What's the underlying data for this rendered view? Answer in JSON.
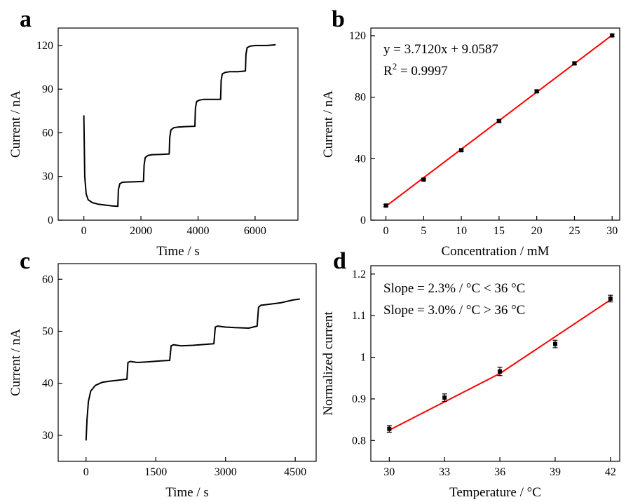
{
  "chart_data": [
    {
      "panel": "a",
      "type": "line",
      "xlabel": "Time / s",
      "ylabel": "Current / nA",
      "xlim": [
        -900,
        7500
      ],
      "ylim": [
        0,
        132
      ],
      "xticks": [
        0,
        2000,
        4000,
        6000
      ],
      "yticks": [
        0,
        30,
        60,
        90,
        120
      ],
      "x": [
        0,
        30,
        80,
        150,
        300,
        500,
        800,
        1000,
        1190,
        1210,
        1260,
        1350,
        1500,
        1800,
        2090,
        2110,
        2150,
        2250,
        2400,
        2700,
        2990,
        3010,
        3050,
        3150,
        3300,
        3600,
        3890,
        3910,
        3950,
        4050,
        4200,
        4500,
        4790,
        4810,
        4850,
        4950,
        5100,
        5400,
        5660,
        5680,
        5720,
        5820,
        6000,
        6400,
        6720
      ],
      "y": [
        72,
        30,
        18,
        14,
        12,
        11,
        10.2,
        9.8,
        9.5,
        21,
        25,
        26,
        26.2,
        26.4,
        26.6,
        38,
        43,
        44.5,
        45,
        45.2,
        45.5,
        57,
        62,
        63.5,
        64,
        64.3,
        64.5,
        77,
        81.5,
        82.5,
        83,
        83,
        83,
        96,
        100.5,
        101.5,
        102,
        102,
        102.5,
        114,
        118.5,
        119.5,
        120,
        120,
        120.5
      ]
    },
    {
      "panel": "b",
      "type": "scatter",
      "xlabel": "Concentration / mM",
      "ylabel": "Current / nA",
      "xlim": [
        -2,
        31
      ],
      "ylim": [
        0,
        125
      ],
      "xticks": [
        0,
        5,
        10,
        15,
        20,
        25,
        30
      ],
      "yticks": [
        0,
        40,
        80,
        120
      ],
      "x": [
        0,
        5,
        10,
        15,
        20,
        25,
        30
      ],
      "y": [
        9.5,
        26.4,
        45.5,
        64.5,
        83.8,
        102,
        120.2
      ],
      "error": [
        0.8,
        0.8,
        0.8,
        0.8,
        0.8,
        0.9,
        0.9
      ],
      "fit": {
        "slope": 3.712,
        "intercept": 9.0587
      },
      "annotations": {
        "equation": "y = 3.7120x + 9.0587",
        "r2_prefix": "R",
        "r2_sup": "2",
        "r2_suffix": " = 0.9997"
      }
    },
    {
      "panel": "c",
      "type": "line",
      "xlabel": "Time / s",
      "ylabel": "Current / nA",
      "xlim": [
        -600,
        4950
      ],
      "ylim": [
        25,
        63
      ],
      "xticks": [
        0,
        1500,
        3000,
        4500
      ],
      "yticks": [
        30,
        40,
        50,
        60
      ],
      "x": [
        0,
        20,
        50,
        100,
        200,
        350,
        500,
        700,
        880,
        900,
        950,
        1100,
        1300,
        1600,
        1800,
        1830,
        1880,
        2050,
        2300,
        2600,
        2750,
        2780,
        2830,
        3000,
        3200,
        3500,
        3680,
        3710,
        3760,
        3950,
        4200,
        4450,
        4600
      ],
      "y": [
        29,
        33,
        36.5,
        38.5,
        39.6,
        40.2,
        40.4,
        40.6,
        40.8,
        44,
        44.2,
        44,
        44.1,
        44.3,
        44.4,
        47.2,
        47.4,
        47.2,
        47.3,
        47.5,
        47.6,
        50.8,
        51,
        50.8,
        50.7,
        50.6,
        51,
        54.6,
        55,
        55.2,
        55.5,
        56,
        56.2
      ]
    },
    {
      "panel": "d",
      "type": "scatter",
      "xlabel": "Temperature / °C",
      "ylabel": "Normalized current",
      "xlim": [
        29,
        42.5
      ],
      "ylim": [
        0.75,
        1.22
      ],
      "xticks": [
        30,
        33,
        36,
        39,
        42
      ],
      "yticks": [
        0.8,
        0.9,
        1.0,
        1.1,
        1.2
      ],
      "x": [
        30,
        33,
        36,
        39,
        42
      ],
      "y": [
        0.828,
        0.903,
        0.966,
        1.032,
        1.141
      ],
      "error": [
        0.008,
        0.009,
        0.01,
        0.009,
        0.008
      ],
      "fit_segments": [
        {
          "x": [
            30,
            36
          ],
          "y": [
            0.825,
            0.961
          ]
        },
        {
          "x": [
            36,
            42
          ],
          "y": [
            0.961,
            1.138
          ]
        }
      ],
      "annotations": {
        "line1": "Slope = 2.3% / °C < 36 °C",
        "line2": "Slope = 3.0% / °C > 36 °C"
      }
    }
  ],
  "panels": {
    "a": "a",
    "b": "b",
    "c": "c",
    "d": "d"
  }
}
